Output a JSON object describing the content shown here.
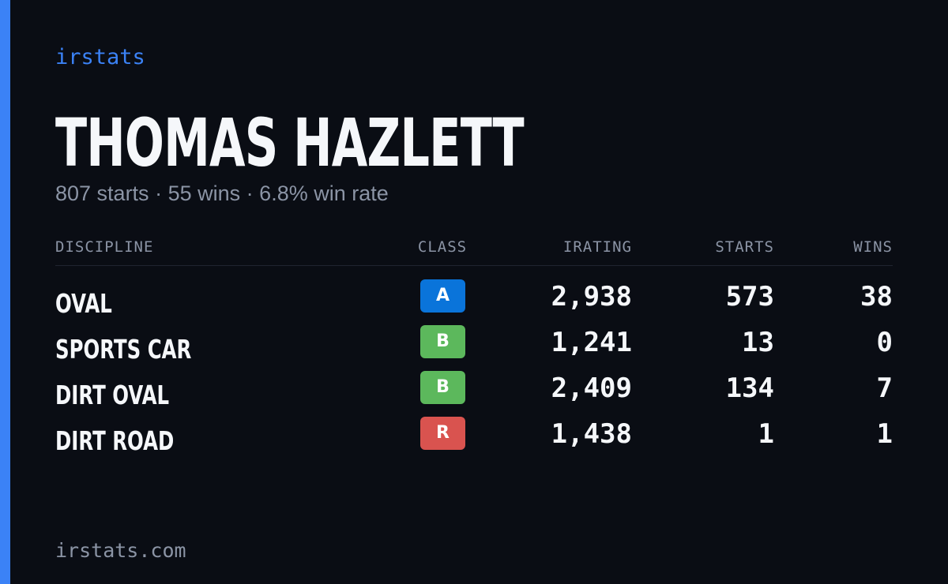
{
  "brand": "irstats",
  "driver": {
    "name": "THOMAS HAZLETT",
    "starts_text": "807 starts",
    "wins_text": "55 wins",
    "win_rate_text": "6.8% win rate",
    "separator": "·"
  },
  "table": {
    "headers": {
      "discipline": "DISCIPLINE",
      "class": "CLASS",
      "irating": "IRATING",
      "starts": "STARTS",
      "wins": "WINS"
    },
    "rows": [
      {
        "discipline": "OVAL",
        "class": "A",
        "class_color": "#0a74da",
        "irating": "2,938",
        "starts": "573",
        "wins": "38"
      },
      {
        "discipline": "SPORTS CAR",
        "class": "B",
        "class_color": "#5cb85c",
        "irating": "1,241",
        "starts": "13",
        "wins": "0"
      },
      {
        "discipline": "DIRT OVAL",
        "class": "B",
        "class_color": "#5cb85c",
        "irating": "2,409",
        "starts": "134",
        "wins": "7"
      },
      {
        "discipline": "DIRT ROAD",
        "class": "R",
        "class_color": "#d9534f",
        "irating": "1,438",
        "starts": "1",
        "wins": "1"
      }
    ]
  },
  "footer": "irstats.com",
  "colors": {
    "accent": "#3b82f6",
    "background": "#0a0d14",
    "text_primary": "#f5f7fa",
    "text_muted": "#8b94a5"
  }
}
